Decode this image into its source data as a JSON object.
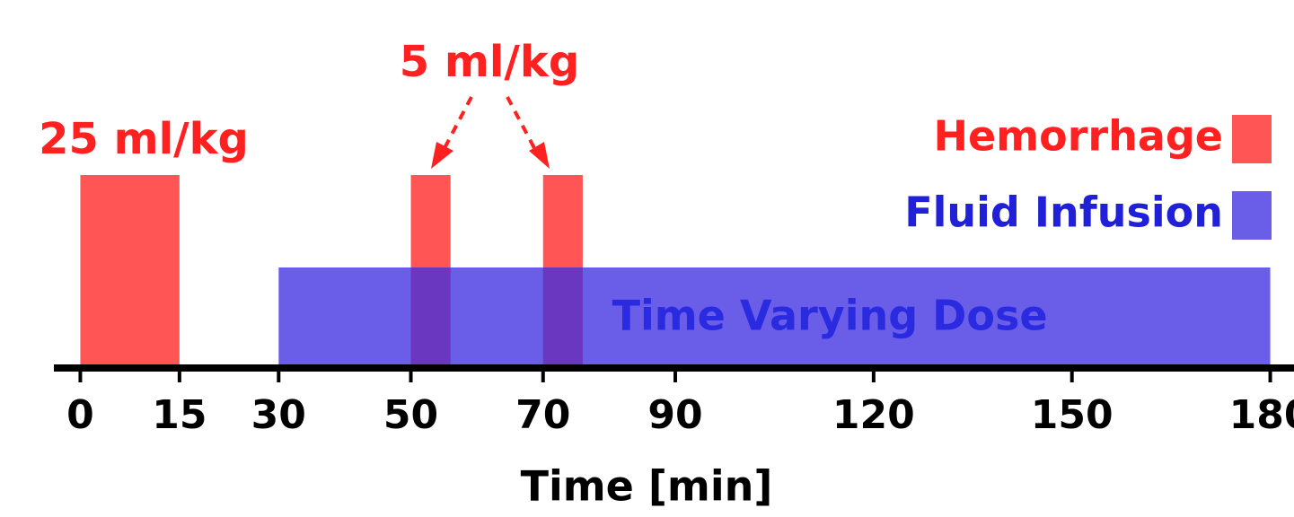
{
  "chart_data": {
    "type": "timeline",
    "x_label": "Time [min]",
    "xlim": [
      -4,
      184
    ],
    "xticks": [
      0,
      15,
      30,
      50,
      70,
      90,
      120,
      150,
      180
    ],
    "series": [
      {
        "name": "Hemorrhage",
        "color": "#ff5555",
        "intervals": [
          [
            0,
            15
          ],
          [
            50,
            56
          ],
          [
            70,
            76
          ]
        ]
      },
      {
        "name": "Fluid Infusion",
        "color": "#4030e0",
        "intervals": [
          [
            30,
            180
          ]
        ],
        "label": "Time Varying Dose"
      }
    ],
    "annotations": [
      "25 ml/kg",
      "5 ml/kg"
    ]
  }
}
